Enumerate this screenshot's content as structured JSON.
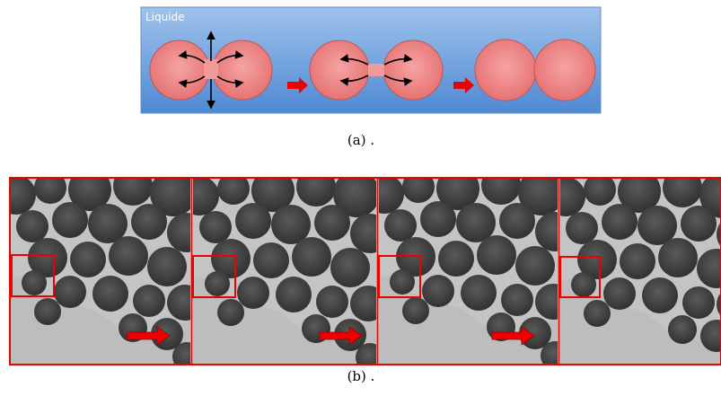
{
  "figure": {
    "inset_label": "Liquide",
    "captions": [
      "(a) .",
      "(b) ."
    ]
  }
}
